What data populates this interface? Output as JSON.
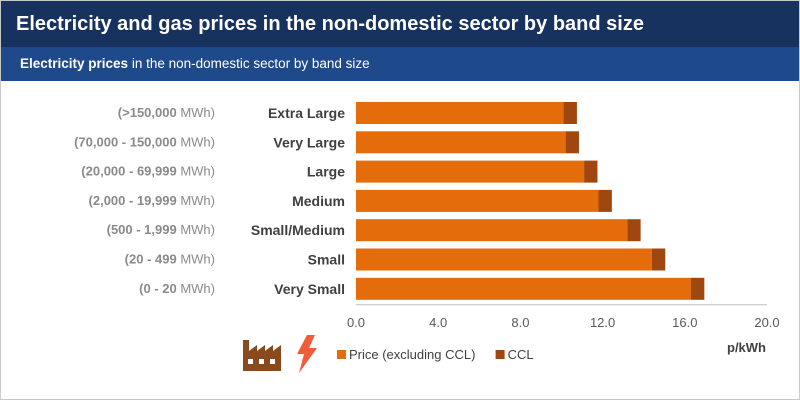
{
  "header": {
    "title": "Electricity and gas prices in the non-domestic sector by band size",
    "subtitle_bold": "Electricity prices",
    "subtitle_rest": " in the non-domestic sector by band size"
  },
  "icons": {
    "factory": "factory-icon",
    "lightning": "lightning-bolt-icon"
  },
  "colors": {
    "header_bg": "#17325f",
    "subheader_bg": "#1e4a8c",
    "price": "#e46c0a",
    "ccl": "#a0470f",
    "factory_icon": "#8a4a1e",
    "bolt_icon": "#f25c3b"
  },
  "band_ranges": [
    {
      "range": "(>150,000",
      "unit": "MWh)"
    },
    {
      "range": "(70,000 - 150,000",
      "unit": "MWh)"
    },
    {
      "range": "(20,000 - 69,999",
      "unit": "MWh)"
    },
    {
      "range": "(2,000 - 19,999",
      "unit": "MWh)"
    },
    {
      "range": "(500 - 1,999",
      "unit": "MWh)"
    },
    {
      "range": "(20 - 499",
      "unit": "MWh)"
    },
    {
      "range": "(0 - 20",
      "unit": "MWh)"
    }
  ],
  "chart_data": {
    "type": "bar",
    "orientation": "horizontal",
    "stacked": true,
    "categories": [
      "Extra Large",
      "Very Large",
      "Large",
      "Medium",
      "Small/Medium",
      "Small",
      "Very Small"
    ],
    "series": [
      {
        "name": "Price (excluding CCL)",
        "values": [
          10.1,
          10.2,
          11.1,
          11.8,
          13.2,
          14.4,
          16.3
        ]
      },
      {
        "name": "CCL",
        "values": [
          0.65,
          0.65,
          0.65,
          0.65,
          0.65,
          0.65,
          0.65
        ]
      }
    ],
    "xlabel": "p/kWh",
    "xlim": [
      0,
      20
    ],
    "xticks": [
      0,
      4,
      8,
      12,
      16,
      20
    ],
    "xtick_labels": [
      "0.0",
      "4.0",
      "8.0",
      "12.0",
      "16.0",
      "20.0"
    ],
    "grid": false,
    "legend_position": "bottom"
  }
}
